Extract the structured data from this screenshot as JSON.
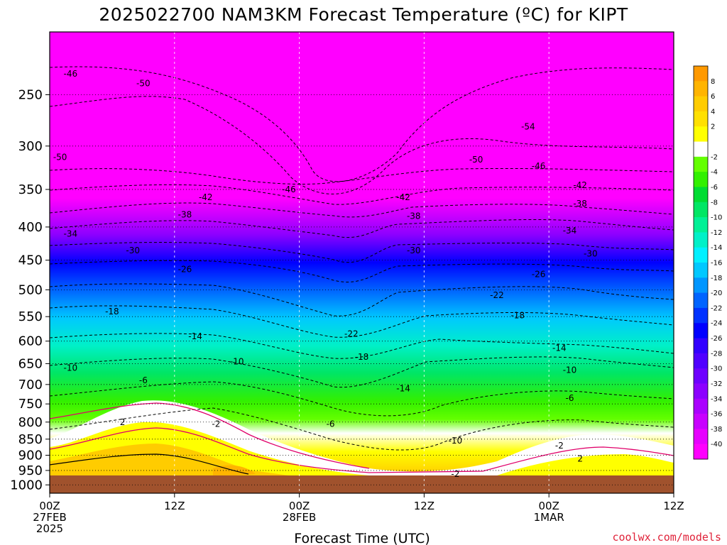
{
  "chart_data": {
    "type": "heatmap",
    "title": "2025022700 NAM3KM Forecast Temperature (ºC) for KIPT",
    "xlabel": "Forecast Time (UTC)",
    "ylabel": "",
    "credit": "coolwx.com/models",
    "x_ticks": [
      {
        "hour": 0,
        "lines": [
          "00Z",
          "27FEB",
          "2025"
        ]
      },
      {
        "hour": 12,
        "lines": [
          "12Z"
        ]
      },
      {
        "hour": 24,
        "lines": [
          "00Z",
          "28FEB"
        ]
      },
      {
        "hour": 36,
        "lines": [
          "12Z"
        ]
      },
      {
        "hour": 48,
        "lines": [
          "00Z",
          "1MAR"
        ]
      },
      {
        "hour": 60,
        "lines": [
          "12Z"
        ]
      }
    ],
    "xlim": [
      0,
      60
    ],
    "y_ticks": [
      250,
      300,
      350,
      400,
      450,
      500,
      550,
      600,
      650,
      700,
      750,
      800,
      850,
      900,
      950,
      1000
    ],
    "ylim": [
      1030,
      200
    ],
    "y_scale": "log",
    "colorbar": {
      "labels": [
        "8",
        "6",
        "4",
        "2",
        "-2",
        "-4",
        "-6",
        "-8",
        "-10",
        "-12",
        "-14",
        "-16",
        "-18",
        "-20",
        "-22",
        "-24",
        "-26",
        "-28",
        "-30",
        "-32",
        "-34",
        "-36",
        "-38",
        "-40"
      ],
      "colors": [
        "#ff9900",
        "#ffb400",
        "#ffcc00",
        "#ffe000",
        "#ffff00",
        "#ffffff",
        "#64ff00",
        "#32f000",
        "#00dc32",
        "#00e664",
        "#00f096",
        "#00f0c8",
        "#00f0ff",
        "#00c8ff",
        "#0096ff",
        "#0064ff",
        "#0032ff",
        "#0000ff",
        "#3200ff",
        "#5000ff",
        "#6e00ff",
        "#8c00ff",
        "#aa00ff",
        "#c800ff",
        "#e600ff",
        "#ff00ff"
      ]
    },
    "isotherm_labels": [
      {
        "label": "-46",
        "hour": 2,
        "p": 232
      },
      {
        "label": "-50",
        "hour": 9,
        "p": 240
      },
      {
        "label": "-50",
        "hour": 1,
        "p": 312
      },
      {
        "label": "-46",
        "hour": 23,
        "p": 350
      },
      {
        "label": "-42",
        "hour": 15,
        "p": 360
      },
      {
        "label": "-38",
        "hour": 13,
        "p": 383
      },
      {
        "label": "-34",
        "hour": 2,
        "p": 410
      },
      {
        "label": "-30",
        "hour": 8,
        "p": 435
      },
      {
        "label": "-26",
        "hour": 13,
        "p": 465
      },
      {
        "label": "-18",
        "hour": 6,
        "p": 540
      },
      {
        "label": "-14",
        "hour": 14,
        "p": 590
      },
      {
        "label": "-10",
        "hour": 2,
        "p": 660
      },
      {
        "label": "-10",
        "hour": 18,
        "p": 645
      },
      {
        "label": "-6",
        "hour": 9,
        "p": 690
      },
      {
        "label": "-2",
        "hour": 16,
        "p": 805
      },
      {
        "label": "2",
        "hour": 7,
        "p": 800
      },
      {
        "label": "-6",
        "hour": 27,
        "p": 805
      },
      {
        "label": "-42",
        "hour": 34,
        "p": 360
      },
      {
        "label": "-38",
        "hour": 35,
        "p": 385
      },
      {
        "label": "-30",
        "hour": 35,
        "p": 435
      },
      {
        "label": "-22",
        "hour": 29,
        "p": 585
      },
      {
        "label": "-18",
        "hour": 30,
        "p": 635
      },
      {
        "label": "-14",
        "hour": 34,
        "p": 710
      },
      {
        "label": "-10",
        "hour": 39,
        "p": 855
      },
      {
        "label": "-2",
        "hour": 39,
        "p": 962
      },
      {
        "label": "-54",
        "hour": 46,
        "p": 280
      },
      {
        "label": "-50",
        "hour": 41,
        "p": 315
      },
      {
        "label": "-46",
        "hour": 47,
        "p": 322
      },
      {
        "label": "-42",
        "hour": 51,
        "p": 345
      },
      {
        "label": "-38",
        "hour": 51,
        "p": 368
      },
      {
        "label": "-34",
        "hour": 50,
        "p": 405
      },
      {
        "label": "-30",
        "hour": 52,
        "p": 440
      },
      {
        "label": "-26",
        "hour": 47,
        "p": 473
      },
      {
        "label": "-22",
        "hour": 43,
        "p": 510
      },
      {
        "label": "-18",
        "hour": 45,
        "p": 548
      },
      {
        "label": "-14",
        "hour": 49,
        "p": 615
      },
      {
        "label": "-10",
        "hour": 50,
        "p": 665
      },
      {
        "label": "-6",
        "hour": 50,
        "p": 735
      },
      {
        "label": "-2",
        "hour": 49,
        "p": 870
      },
      {
        "label": "2",
        "hour": 51,
        "p": 912
      }
    ]
  }
}
